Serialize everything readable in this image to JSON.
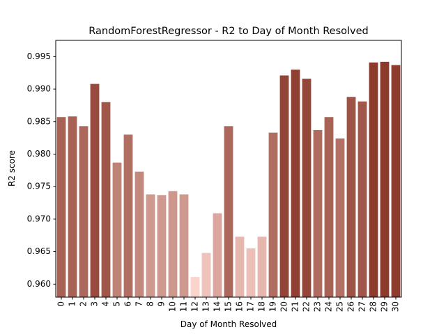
{
  "chart_data": {
    "type": "bar",
    "title": "RandomForestRegressor - R2 to Day of Month Resolved",
    "xlabel": "Day of Month Resolved",
    "ylabel": "R2 score",
    "categories": [
      "0",
      "1",
      "2",
      "3",
      "4",
      "5",
      "6",
      "7",
      "8",
      "9",
      "10",
      "11",
      "12",
      "13",
      "14",
      "15",
      "16",
      "17",
      "18",
      "19",
      "20",
      "21",
      "22",
      "23",
      "24",
      "25",
      "26",
      "27",
      "28",
      "29",
      "30"
    ],
    "values": [
      0.9857,
      0.9858,
      0.9843,
      0.9908,
      0.988,
      0.9787,
      0.983,
      0.9773,
      0.9738,
      0.9737,
      0.9743,
      0.9738,
      0.9611,
      0.9648,
      0.9709,
      0.9843,
      0.9673,
      0.9655,
      0.9673,
      0.9833,
      0.9921,
      0.993,
      0.9916,
      0.9837,
      0.9857,
      0.9824,
      0.9888,
      0.9881,
      0.9941,
      0.9942,
      0.9937
    ],
    "ylim": [
      0.958,
      0.9975
    ],
    "yticks": [
      "0.960",
      "0.965",
      "0.970",
      "0.975",
      "0.980",
      "0.985",
      "0.990",
      "0.995"
    ],
    "grid": false,
    "colors": {
      "low": "#fbd4cd",
      "high": "#8b3a2c",
      "axis": "#000000"
    }
  }
}
